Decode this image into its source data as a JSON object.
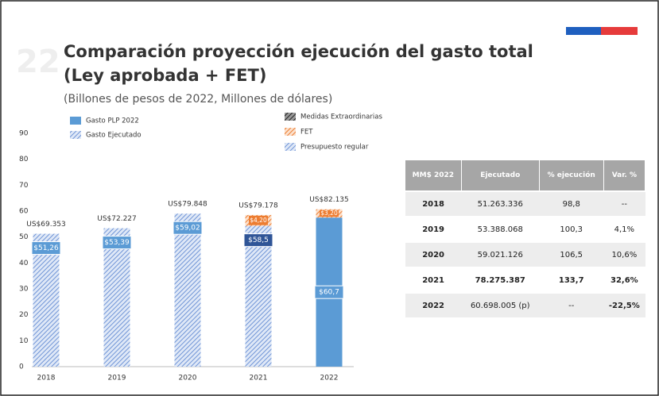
{
  "slide": {
    "title_lines": [
      "Comparación proyección ejecución del gasto total",
      "(Ley aprobada + FET)"
    ],
    "subtitle": "(Billones de pesos de 2022, Millones de dólares)"
  },
  "chart_data": {
    "type": "bar",
    "stacked": true,
    "categories": [
      "2018",
      "2019",
      "2020",
      "2021",
      "2022"
    ],
    "ylim": [
      0,
      90
    ],
    "yticks": [
      0,
      10,
      20,
      30,
      40,
      50,
      60,
      70,
      80,
      90
    ],
    "series": [
      {
        "name": "Gasto PLP 2022",
        "color": "#5b9bd5",
        "hatch": false,
        "values": [
          null,
          null,
          null,
          null,
          57.5
        ]
      },
      {
        "name": "Gasto Ejecutado",
        "color": "#8eaadb",
        "hatch": true,
        "values": [
          51.26,
          53.39,
          59.02,
          null,
          null
        ]
      },
      {
        "name": "Medidas Extraordinarias",
        "color": "#404040",
        "hatch": true,
        "values": [
          null,
          null,
          null,
          null,
          null
        ]
      },
      {
        "name": "FET",
        "color": "#f4b183",
        "hatch": true,
        "values": [
          null,
          null,
          null,
          4.2,
          3.2
        ],
        "value_labels": [
          null,
          null,
          null,
          "$4,20",
          "$3,20"
        ]
      },
      {
        "name": "Presupuesto regular",
        "color": "#8eaadb",
        "hatch": true,
        "values": [
          null,
          null,
          null,
          54.3,
          null
        ]
      }
    ],
    "bar_labels": [
      "$51,26",
      "$53,39",
      "$59,02",
      "$58,5",
      "$60,7"
    ],
    "usd_labels": [
      "US$69.353",
      "US$72.227",
      "US$79.848",
      "US$79.178",
      "US$82.135"
    ]
  },
  "table": {
    "header": [
      "MM$ 2022",
      "Ejecutado",
      "% ejecución",
      "Var. %"
    ],
    "rows": [
      [
        "2018",
        "51.263.336",
        "98,8",
        "--"
      ],
      [
        "2019",
        "53.388.068",
        "100,3",
        "4,1%"
      ],
      [
        "2020",
        "59.021.126",
        "106,5",
        "10,6%"
      ],
      [
        "2021",
        "78.275.387",
        "133,7",
        "32,6%"
      ],
      [
        "2022",
        "60.698.005 (p)",
        "--",
        "-22,5%"
      ]
    ]
  }
}
